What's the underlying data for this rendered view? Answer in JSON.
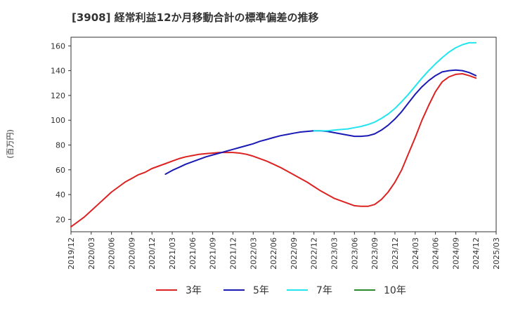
{
  "chart_data": {
    "type": "line",
    "title": "[3908]  経常利益12か月移動合計の標準偏差の推移",
    "ylabel": "(百万円)",
    "ylim": [
      10,
      167
    ],
    "yticks": [
      20,
      40,
      60,
      80,
      100,
      120,
      140,
      160
    ],
    "xlim": [
      "2019/12",
      "2025/03"
    ],
    "xticks": [
      "2019/12",
      "2020/03",
      "2020/06",
      "2020/09",
      "2020/12",
      "2021/03",
      "2021/06",
      "2021/09",
      "2021/12",
      "2022/03",
      "2022/06",
      "2022/09",
      "2022/12",
      "2023/03",
      "2023/06",
      "2023/09",
      "2023/12",
      "2024/03",
      "2024/06",
      "2024/09",
      "2024/12",
      "2025/03"
    ],
    "grid": true,
    "legend_position": "bottom",
    "series": [
      {
        "name": "3年",
        "color": "#dd2222",
        "x": [
          "2019/12",
          "2020/01",
          "2020/02",
          "2020/03",
          "2020/04",
          "2020/05",
          "2020/06",
          "2020/07",
          "2020/08",
          "2020/09",
          "2020/10",
          "2020/11",
          "2020/12",
          "2021/01",
          "2021/02",
          "2021/03",
          "2021/04",
          "2021/05",
          "2021/06",
          "2021/07",
          "2021/08",
          "2021/09",
          "2021/10",
          "2021/11",
          "2021/12",
          "2022/01",
          "2022/02",
          "2022/03",
          "2022/04",
          "2022/05",
          "2022/06",
          "2022/07",
          "2022/08",
          "2022/09",
          "2022/10",
          "2022/11",
          "2022/12",
          "2023/01",
          "2023/02",
          "2023/03",
          "2023/04",
          "2023/05",
          "2023/06",
          "2023/07",
          "2023/08",
          "2023/09",
          "2023/10",
          "2023/11",
          "2023/12",
          "2024/01",
          "2024/02",
          "2024/03",
          "2024/04",
          "2024/05",
          "2024/06",
          "2024/07",
          "2024/08",
          "2024/09",
          "2024/10",
          "2024/11",
          "2024/12"
        ],
        "values": [
          14,
          18,
          22,
          27,
          32,
          37,
          42,
          46,
          50,
          53,
          56,
          58,
          61,
          63,
          65,
          67,
          69,
          70.5,
          71.5,
          72.5,
          73,
          73.5,
          74,
          74,
          74,
          73.5,
          72.5,
          71,
          69,
          67,
          64.5,
          62,
          59,
          56,
          53,
          50,
          46.5,
          43,
          40,
          37,
          35,
          33,
          31,
          30.5,
          30.5,
          32,
          36,
          42,
          50,
          60,
          73,
          86,
          100,
          112,
          123,
          131,
          135,
          137,
          137.5,
          136,
          134
        ]
      },
      {
        "name": "5年",
        "color": "#1a1ab4",
        "x": [
          "2021/02",
          "2021/03",
          "2021/04",
          "2021/05",
          "2021/06",
          "2021/07",
          "2021/08",
          "2021/09",
          "2021/10",
          "2021/11",
          "2021/12",
          "2022/01",
          "2022/02",
          "2022/03",
          "2022/04",
          "2022/05",
          "2022/06",
          "2022/07",
          "2022/08",
          "2022/09",
          "2022/10",
          "2022/11",
          "2022/12",
          "2023/01",
          "2023/02",
          "2023/03",
          "2023/04",
          "2023/05",
          "2023/06",
          "2023/07",
          "2023/08",
          "2023/09",
          "2023/10",
          "2023/11",
          "2023/12",
          "2024/01",
          "2024/02",
          "2024/03",
          "2024/04",
          "2024/05",
          "2024/06",
          "2024/07",
          "2024/08",
          "2024/09",
          "2024/10",
          "2024/11",
          "2024/12"
        ],
        "values": [
          56.5,
          59.5,
          62,
          64.5,
          66.5,
          68.5,
          70.5,
          72,
          73.5,
          75,
          76.5,
          78,
          79.5,
          81,
          83,
          84.5,
          86,
          87.5,
          88.5,
          89.5,
          90.5,
          91,
          91.5,
          91.5,
          91,
          90,
          89,
          88,
          87,
          87,
          87.5,
          89,
          92,
          96,
          101,
          107,
          114,
          121,
          127,
          132,
          136,
          139,
          140,
          140.5,
          140,
          138.5,
          136
        ]
      },
      {
        "name": "7年",
        "color": "#22e5ee",
        "x": [
          "2022/12",
          "2023/01",
          "2023/02",
          "2023/03",
          "2023/04",
          "2023/05",
          "2023/06",
          "2023/07",
          "2023/08",
          "2023/09",
          "2023/10",
          "2023/11",
          "2023/12",
          "2024/01",
          "2024/02",
          "2024/03",
          "2024/04",
          "2024/05",
          "2024/06",
          "2024/07",
          "2024/08",
          "2024/09",
          "2024/10",
          "2024/11",
          "2024/12"
        ],
        "values": [
          91.5,
          91.5,
          91.5,
          92,
          92.5,
          93,
          94,
          95,
          96.5,
          98.5,
          101.5,
          105,
          109.5,
          115,
          121,
          127.5,
          134,
          140,
          145.5,
          150.5,
          155,
          158.5,
          161,
          162.5,
          162.5
        ]
      },
      {
        "name": "10年",
        "color": "#2a8a2a",
        "x": [],
        "values": []
      }
    ]
  }
}
